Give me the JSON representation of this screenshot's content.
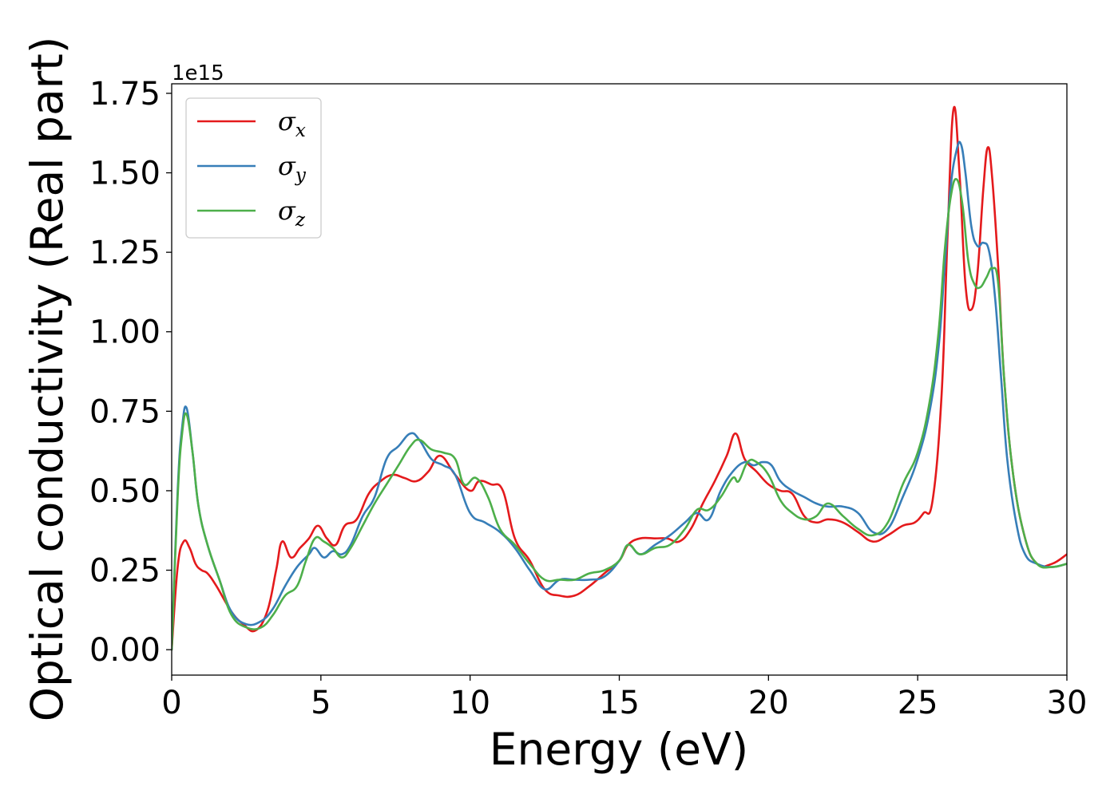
{
  "chart_data": {
    "type": "line",
    "title": "",
    "xlabel": "Energy (eV)",
    "ylabel": "Optical conductivity (Real part)",
    "y_offset_label": "1e15",
    "y_scale_factor": 1000000000000000.0,
    "xlim": [
      0,
      30
    ],
    "ylim": [
      -0.08,
      1.78
    ],
    "x_ticks": [
      0,
      5,
      10,
      15,
      20,
      25,
      30
    ],
    "x_tick_labels": [
      "0",
      "5",
      "10",
      "15",
      "20",
      "25",
      "30"
    ],
    "y_ticks": [
      0.0,
      0.25,
      0.5,
      0.75,
      1.0,
      1.25,
      1.5,
      1.75
    ],
    "y_tick_labels": [
      "0.00",
      "0.25",
      "0.50",
      "0.75",
      "1.00",
      "1.25",
      "1.50",
      "1.75"
    ],
    "grid": false,
    "legend_position": "top-left",
    "series": [
      {
        "name": "σx",
        "name_base": "σ",
        "name_sub": "x",
        "color": "#e41a1c",
        "x": [
          0,
          0.2,
          0.4,
          0.6,
          0.8,
          1.0,
          1.2,
          1.5,
          2.0,
          2.4,
          2.8,
          3.2,
          3.5,
          3.7,
          4.0,
          4.3,
          4.6,
          4.9,
          5.2,
          5.5,
          5.8,
          6.2,
          6.6,
          7.0,
          7.4,
          7.8,
          8.2,
          8.6,
          9.0,
          9.5,
          10.0,
          10.3,
          10.7,
          11.1,
          11.5,
          12.0,
          12.5,
          13.0,
          13.5,
          14.0,
          14.5,
          15.0,
          15.3,
          15.7,
          16.2,
          16.6,
          17.0,
          17.4,
          17.8,
          18.2,
          18.6,
          18.9,
          19.2,
          19.6,
          20.0,
          20.4,
          20.8,
          21.2,
          21.6,
          22.0,
          22.5,
          23.0,
          23.5,
          24.0,
          24.5,
          24.9,
          25.2,
          25.5,
          25.8,
          26.0,
          26.2,
          26.4,
          26.6,
          26.8,
          27.0,
          27.2,
          27.35,
          27.5,
          27.7,
          27.9,
          28.2,
          28.6,
          29.0,
          29.5,
          30.0
        ],
        "values": [
          0.0,
          0.26,
          0.34,
          0.32,
          0.27,
          0.25,
          0.24,
          0.2,
          0.12,
          0.08,
          0.06,
          0.12,
          0.25,
          0.34,
          0.29,
          0.32,
          0.35,
          0.39,
          0.35,
          0.33,
          0.39,
          0.41,
          0.49,
          0.53,
          0.55,
          0.54,
          0.53,
          0.56,
          0.61,
          0.55,
          0.5,
          0.53,
          0.52,
          0.5,
          0.35,
          0.28,
          0.19,
          0.17,
          0.17,
          0.2,
          0.24,
          0.28,
          0.33,
          0.35,
          0.35,
          0.35,
          0.34,
          0.38,
          0.46,
          0.53,
          0.61,
          0.68,
          0.6,
          0.56,
          0.52,
          0.5,
          0.49,
          0.42,
          0.4,
          0.41,
          0.4,
          0.37,
          0.34,
          0.36,
          0.39,
          0.4,
          0.43,
          0.47,
          0.8,
          1.3,
          1.7,
          1.5,
          1.15,
          1.07,
          1.18,
          1.45,
          1.58,
          1.48,
          1.2,
          0.85,
          0.55,
          0.35,
          0.27,
          0.27,
          0.3
        ]
      },
      {
        "name": "σy",
        "name_base": "σ",
        "name_sub": "y",
        "color": "#377eb8",
        "x": [
          0,
          0.2,
          0.35,
          0.5,
          0.7,
          0.9,
          1.2,
          1.6,
          2.0,
          2.5,
          3.0,
          3.4,
          3.8,
          4.2,
          4.6,
          4.8,
          5.1,
          5.4,
          5.7,
          6.0,
          6.4,
          6.8,
          7.2,
          7.6,
          8.0,
          8.3,
          8.7,
          9.1,
          9.5,
          10.0,
          10.5,
          11.0,
          11.5,
          12.0,
          12.5,
          13.0,
          13.5,
          14.0,
          14.5,
          15.0,
          15.3,
          15.7,
          16.2,
          16.7,
          17.2,
          17.6,
          18.0,
          18.4,
          18.8,
          19.2,
          19.5,
          19.8,
          20.1,
          20.4,
          20.8,
          21.2,
          21.6,
          22.0,
          22.5,
          23.0,
          23.5,
          24.0,
          24.5,
          25.0,
          25.4,
          25.7,
          25.9,
          26.1,
          26.3,
          26.45,
          26.6,
          26.8,
          27.0,
          27.2,
          27.4,
          27.6,
          27.8,
          28.0,
          28.3,
          28.6,
          29.0,
          29.5,
          30.0
        ],
        "values": [
          0.0,
          0.5,
          0.7,
          0.76,
          0.62,
          0.45,
          0.33,
          0.22,
          0.12,
          0.08,
          0.09,
          0.13,
          0.2,
          0.26,
          0.3,
          0.32,
          0.29,
          0.31,
          0.3,
          0.33,
          0.42,
          0.48,
          0.6,
          0.64,
          0.68,
          0.66,
          0.6,
          0.58,
          0.55,
          0.43,
          0.4,
          0.37,
          0.32,
          0.25,
          0.19,
          0.22,
          0.22,
          0.22,
          0.23,
          0.28,
          0.33,
          0.3,
          0.33,
          0.36,
          0.4,
          0.43,
          0.41,
          0.5,
          0.56,
          0.59,
          0.58,
          0.59,
          0.58,
          0.53,
          0.5,
          0.48,
          0.46,
          0.45,
          0.45,
          0.43,
          0.37,
          0.38,
          0.48,
          0.6,
          0.75,
          0.95,
          1.2,
          1.45,
          1.57,
          1.59,
          1.5,
          1.33,
          1.27,
          1.28,
          1.25,
          1.1,
          0.85,
          0.6,
          0.4,
          0.3,
          0.27,
          0.26,
          0.27
        ]
      },
      {
        "name": "σz",
        "name_base": "σ",
        "name_sub": "z",
        "color": "#4daf4a",
        "x": [
          0,
          0.2,
          0.35,
          0.5,
          0.7,
          0.9,
          1.2,
          1.6,
          2.0,
          2.5,
          3.0,
          3.4,
          3.8,
          4.2,
          4.5,
          4.8,
          5.1,
          5.4,
          5.7,
          6.0,
          6.4,
          6.8,
          7.2,
          7.6,
          8.0,
          8.3,
          8.7,
          9.1,
          9.5,
          9.8,
          10.2,
          10.6,
          11.0,
          11.5,
          12.0,
          12.5,
          13.0,
          13.5,
          14.0,
          14.5,
          15.0,
          15.3,
          15.7,
          16.2,
          16.7,
          17.2,
          17.6,
          18.0,
          18.4,
          18.8,
          19.0,
          19.3,
          19.6,
          20.0,
          20.4,
          20.8,
          21.2,
          21.6,
          22.0,
          22.5,
          23.0,
          23.5,
          24.0,
          24.5,
          25.0,
          25.4,
          25.7,
          25.9,
          26.1,
          26.3,
          26.5,
          26.7,
          26.9,
          27.1,
          27.3,
          27.5,
          27.7,
          27.9,
          28.2,
          28.6,
          29.0,
          29.5,
          30.0
        ],
        "values": [
          0.0,
          0.48,
          0.68,
          0.74,
          0.62,
          0.45,
          0.33,
          0.22,
          0.11,
          0.07,
          0.07,
          0.11,
          0.17,
          0.2,
          0.28,
          0.35,
          0.34,
          0.32,
          0.29,
          0.32,
          0.39,
          0.46,
          0.52,
          0.58,
          0.64,
          0.66,
          0.63,
          0.62,
          0.6,
          0.52,
          0.54,
          0.48,
          0.38,
          0.33,
          0.27,
          0.22,
          0.22,
          0.22,
          0.24,
          0.25,
          0.28,
          0.33,
          0.3,
          0.32,
          0.33,
          0.38,
          0.44,
          0.44,
          0.48,
          0.54,
          0.53,
          0.59,
          0.59,
          0.55,
          0.47,
          0.43,
          0.41,
          0.42,
          0.46,
          0.42,
          0.38,
          0.36,
          0.4,
          0.52,
          0.62,
          0.78,
          1.0,
          1.25,
          1.42,
          1.48,
          1.4,
          1.22,
          1.15,
          1.14,
          1.17,
          1.2,
          1.15,
          0.85,
          0.55,
          0.35,
          0.27,
          0.26,
          0.27
        ]
      }
    ]
  }
}
